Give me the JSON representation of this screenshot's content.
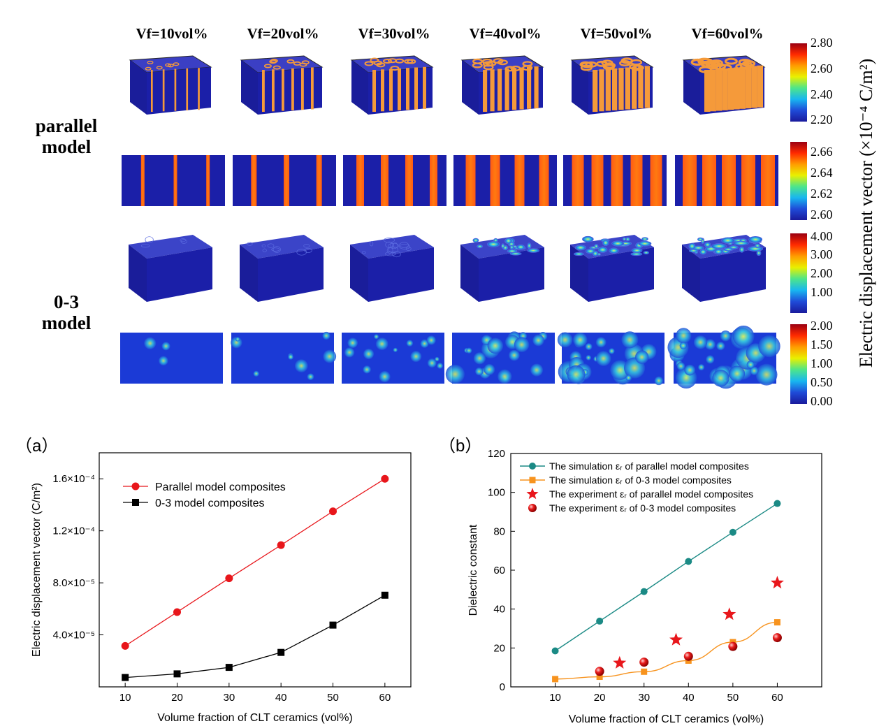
{
  "columns": [
    "Vf=10vol%",
    "Vf=20vol%",
    "Vf=30vol%",
    "Vf=40vol%",
    "Vf=50vol%",
    "Vf=60vol%"
  ],
  "rows": {
    "parallel": [
      "parallel",
      "model"
    ],
    "zero3": [
      "0-3",
      "model"
    ]
  },
  "side_title": "Electric displacement vector (×10⁻⁴ C/m²)",
  "colorbars": [
    {
      "ticks": [
        "2.80",
        "2.60",
        "2.40",
        "2.20"
      ]
    },
    {
      "ticks": [
        "2.66",
        "2.64",
        "2.62",
        "2.60"
      ]
    },
    {
      "ticks": [
        "4.00",
        "3.00",
        "2.00",
        "1.00"
      ]
    },
    {
      "ticks": [
        "2.00",
        "1.50",
        "1.00",
        "0.50",
        "0.00"
      ]
    }
  ],
  "colors": {
    "field_blue": "#1b1fa8",
    "inclusion_orange": "#f59a3a",
    "red": "#e8161b",
    "black": "#000000",
    "teal": "#1b8a85",
    "orange": "#f7931e"
  },
  "panel_labels": [
    "（a）",
    "（b）"
  ],
  "chart_data": [
    {
      "type": "line",
      "x": [
        10,
        20,
        30,
        40,
        50,
        60
      ],
      "series": [
        {
          "name": "Parallel model composites",
          "values": [
            3.15e-05,
            5.75e-05,
            8.35e-05,
            0.000109,
            0.000135,
            0.00016
          ]
        },
        {
          "name": "0-3 model composites",
          "values": [
            7.2e-06,
            1e-05,
            1.5e-05,
            2.65e-05,
            4.75e-05,
            7.05e-05
          ]
        }
      ],
      "xlabel": "Volume fraction of CLT ceramics (vol%)",
      "ylabel": "Electric displacement vector (C/m²)",
      "xticks": [
        "10",
        "20",
        "30",
        "40",
        "50",
        "60"
      ],
      "yticks": [
        "4.0×10⁻⁵",
        "8.0×10⁻⁵",
        "1.2×10⁻⁴",
        "1.6×10⁻⁴"
      ],
      "ytick_values": [
        4e-05,
        8e-05,
        0.00012,
        0.00016
      ],
      "xlim": [
        5,
        65
      ],
      "ylim": [
        0,
        0.00018
      ],
      "legend": "top-left"
    },
    {
      "type": "line",
      "x": [
        10,
        20,
        30,
        40,
        50,
        60
      ],
      "series": [
        {
          "name": "The simulation εᵣ of parallel model composites",
          "x": [
            10,
            20,
            30,
            40,
            50,
            60
          ],
          "values": [
            18.5,
            33.8,
            49.0,
            64.5,
            79.5,
            94.3
          ],
          "marker": "circle"
        },
        {
          "name": "The simulation εᵣ of 0-3 model composites",
          "x": [
            10,
            20,
            30,
            40,
            50,
            60
          ],
          "values": [
            4.0,
            5.2,
            7.8,
            13.5,
            23.0,
            33.2
          ],
          "marker": "square"
        },
        {
          "name": "The experiment εᵣ of parallel model composites",
          "x": [
            24.5,
            37.2,
            49.2,
            60.0
          ],
          "values": [
            12.3,
            24.2,
            37.3,
            53.5
          ],
          "marker": "star"
        },
        {
          "name": "The experiment εᵣ of 0-3 model composites",
          "x": [
            20,
            30,
            40,
            50,
            60
          ],
          "values": [
            8.0,
            12.7,
            15.7,
            20.8,
            25.3
          ],
          "marker": "sphere"
        }
      ],
      "xlabel": "Volume fraction of CLT ceramics (vol%)",
      "ylabel": "Dielectric constant",
      "xticks": [
        "10",
        "20",
        "30",
        "40",
        "50",
        "60"
      ],
      "yticks": [
        "0",
        "20",
        "40",
        "60",
        "80",
        "100",
        "120"
      ],
      "ytick_values": [
        0,
        20,
        40,
        60,
        80,
        100,
        120
      ],
      "xlim": [
        0,
        70
      ],
      "ylim": [
        0,
        120
      ],
      "legend": "top-left"
    }
  ]
}
